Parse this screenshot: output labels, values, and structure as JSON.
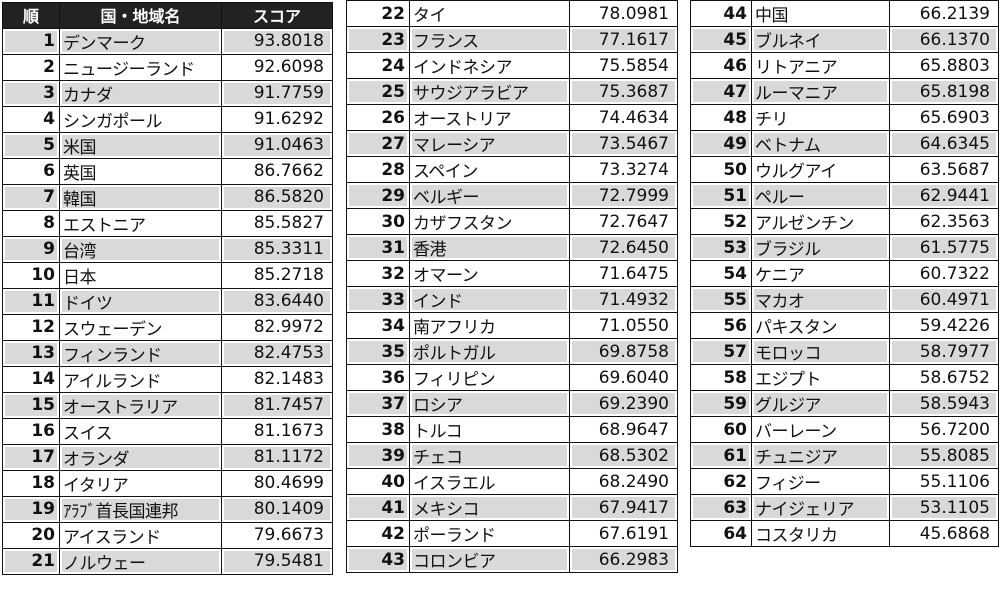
{
  "header": {
    "rank": "順",
    "name": "国・地域名",
    "score": "スコア"
  },
  "rows": [
    {
      "rank": "1",
      "name": "デンマーク",
      "score": "93.8018"
    },
    {
      "rank": "2",
      "name": "ニュージーランド",
      "score": "92.6098"
    },
    {
      "rank": "3",
      "name": "カナダ",
      "score": "91.7759"
    },
    {
      "rank": "4",
      "name": "シンガポール",
      "score": "91.6292"
    },
    {
      "rank": "5",
      "name": "米国",
      "score": "91.0463"
    },
    {
      "rank": "6",
      "name": "英国",
      "score": "86.7662"
    },
    {
      "rank": "7",
      "name": "韓国",
      "score": "86.5820"
    },
    {
      "rank": "8",
      "name": "エストニア",
      "score": "85.5827"
    },
    {
      "rank": "9",
      "name": "台湾",
      "score": "85.3311"
    },
    {
      "rank": "10",
      "name": "日本",
      "score": "85.2718"
    },
    {
      "rank": "11",
      "name": "ドイツ",
      "score": "83.6440"
    },
    {
      "rank": "12",
      "name": "スウェーデン",
      "score": "82.9972"
    },
    {
      "rank": "13",
      "name": "フィンランド",
      "score": "82.4753"
    },
    {
      "rank": "14",
      "name": "アイルランド",
      "score": "82.1483"
    },
    {
      "rank": "15",
      "name": "オーストラリア",
      "score": "81.7457"
    },
    {
      "rank": "16",
      "name": "スイス",
      "score": "81.1673"
    },
    {
      "rank": "17",
      "name": "オランダ",
      "score": "81.1172"
    },
    {
      "rank": "18",
      "name": "イタリア",
      "score": "80.4699"
    },
    {
      "rank": "19",
      "name": "ｱﾗﾌﾞ首長国連邦",
      "score": "80.1409"
    },
    {
      "rank": "20",
      "name": "アイスランド",
      "score": "79.6673"
    },
    {
      "rank": "21",
      "name": "ノルウェー",
      "score": "79.5481"
    },
    {
      "rank": "22",
      "name": "タイ",
      "score": "78.0981"
    },
    {
      "rank": "23",
      "name": "フランス",
      "score": "77.1617"
    },
    {
      "rank": "24",
      "name": "インドネシア",
      "score": "75.5854"
    },
    {
      "rank": "25",
      "name": "サウジアラビア",
      "score": "75.3687"
    },
    {
      "rank": "26",
      "name": "オーストリア",
      "score": "74.4634"
    },
    {
      "rank": "27",
      "name": "マレーシア",
      "score": "73.5467"
    },
    {
      "rank": "28",
      "name": "スペイン",
      "score": "73.3274"
    },
    {
      "rank": "29",
      "name": "ベルギー",
      "score": "72.7999"
    },
    {
      "rank": "30",
      "name": "カザフスタン",
      "score": "72.7647"
    },
    {
      "rank": "31",
      "name": "香港",
      "score": "72.6450"
    },
    {
      "rank": "32",
      "name": "オマーン",
      "score": "71.6475"
    },
    {
      "rank": "33",
      "name": "インド",
      "score": "71.4932"
    },
    {
      "rank": "34",
      "name": "南アフリカ",
      "score": "71.0550"
    },
    {
      "rank": "35",
      "name": "ポルトガル",
      "score": "69.8758"
    },
    {
      "rank": "36",
      "name": "フィリピン",
      "score": "69.6040"
    },
    {
      "rank": "37",
      "name": "ロシア",
      "score": "69.2390"
    },
    {
      "rank": "38",
      "name": "トルコ",
      "score": "68.9647"
    },
    {
      "rank": "39",
      "name": "チェコ",
      "score": "68.5302"
    },
    {
      "rank": "40",
      "name": "イスラエル",
      "score": "68.2490"
    },
    {
      "rank": "41",
      "name": "メキシコ",
      "score": "67.9417"
    },
    {
      "rank": "42",
      "name": "ポーランド",
      "score": "67.6191"
    },
    {
      "rank": "43",
      "name": "コロンビア",
      "score": "66.2983"
    },
    {
      "rank": "44",
      "name": "中国",
      "score": "66.2139"
    },
    {
      "rank": "45",
      "name": "ブルネイ",
      "score": "66.1370"
    },
    {
      "rank": "46",
      "name": "リトアニア",
      "score": "65.8803"
    },
    {
      "rank": "47",
      "name": "ルーマニア",
      "score": "65.8198"
    },
    {
      "rank": "48",
      "name": "チリ",
      "score": "65.6903"
    },
    {
      "rank": "49",
      "name": "ベトナム",
      "score": "64.6345"
    },
    {
      "rank": "50",
      "name": "ウルグアイ",
      "score": "63.5687"
    },
    {
      "rank": "51",
      "name": "ペルー",
      "score": "62.9441"
    },
    {
      "rank": "52",
      "name": "アルゼンチン",
      "score": "62.3563"
    },
    {
      "rank": "53",
      "name": "ブラジル",
      "score": "61.5775"
    },
    {
      "rank": "54",
      "name": "ケニア",
      "score": "60.7322"
    },
    {
      "rank": "55",
      "name": "マカオ",
      "score": "60.4971"
    },
    {
      "rank": "56",
      "name": "パキスタン",
      "score": "59.4226"
    },
    {
      "rank": "57",
      "name": "モロッコ",
      "score": "58.7977"
    },
    {
      "rank": "58",
      "name": "エジプト",
      "score": "58.6752"
    },
    {
      "rank": "59",
      "name": "グルジア",
      "score": "58.5943"
    },
    {
      "rank": "60",
      "name": "バーレーン",
      "score": "56.7200"
    },
    {
      "rank": "61",
      "name": "チュニジア",
      "score": "55.8085"
    },
    {
      "rank": "62",
      "name": "フィジー",
      "score": "55.1106"
    },
    {
      "rank": "63",
      "name": "ナイジェリア",
      "score": "53.1105"
    },
    {
      "rank": "64",
      "name": "コスタリカ",
      "score": "45.6868"
    }
  ]
}
